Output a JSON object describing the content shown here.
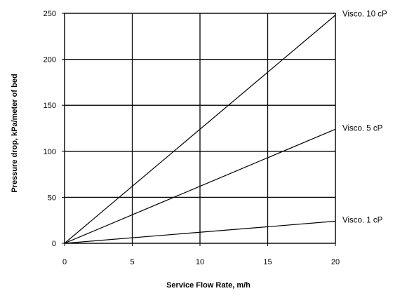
{
  "chart_data": {
    "type": "line",
    "title": "",
    "xlabel": "Service Flow Rate, m/h",
    "ylabel": "Pressure drop, kPa/meter of bed",
    "xlim": [
      0,
      20
    ],
    "ylim": [
      0,
      250
    ],
    "x_ticks": [
      0,
      5,
      10,
      15,
      20
    ],
    "y_ticks": [
      0,
      50,
      100,
      150,
      200,
      250
    ],
    "grid": true,
    "legend": "none",
    "series_color": "#000000",
    "series": [
      {
        "name": "Visco. 10 cP",
        "x": [
          0,
          20
        ],
        "y": [
          0,
          248
        ]
      },
      {
        "name": "Visco. 5 cP",
        "x": [
          0,
          20
        ],
        "y": [
          0,
          124
        ]
      },
      {
        "name": "Visco. 1 cP",
        "x": [
          0,
          20
        ],
        "y": [
          0,
          24
        ]
      }
    ]
  }
}
